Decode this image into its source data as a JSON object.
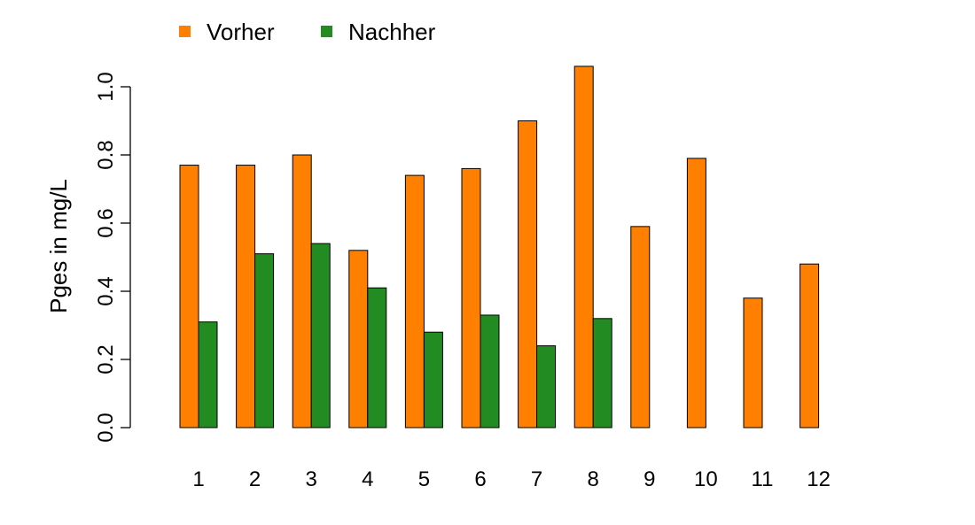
{
  "chart_data": {
    "type": "bar",
    "title": "",
    "xlabel": "",
    "ylabel": "Pges in mg/L",
    "ylim": [
      0,
      1.06
    ],
    "yticks": [
      "0.0",
      "0.2",
      "0.4",
      "0.6",
      "0.8",
      "1.0"
    ],
    "categories": [
      "1",
      "2",
      "3",
      "4",
      "5",
      "6",
      "7",
      "8",
      "9",
      "10",
      "11",
      "12"
    ],
    "series": [
      {
        "name": "Vorher",
        "color": "#FF7F00",
        "values": [
          0.77,
          0.77,
          0.8,
          0.52,
          0.74,
          0.76,
          0.9,
          1.06,
          0.59,
          0.79,
          0.38,
          0.48
        ]
      },
      {
        "name": "Nachher",
        "color": "#228B22",
        "values": [
          0.31,
          0.51,
          0.54,
          0.41,
          0.28,
          0.33,
          0.24,
          0.32,
          0,
          0,
          0,
          0
        ]
      }
    ],
    "legend": "top-left",
    "grid": false
  }
}
